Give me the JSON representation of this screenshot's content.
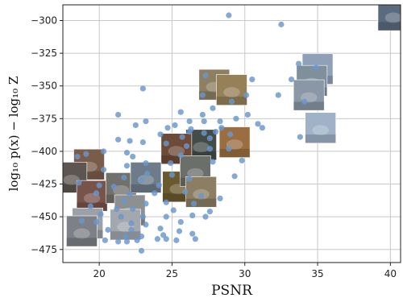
{
  "chart_data": {
    "type": "scatter",
    "xlabel": "PSNR",
    "ylabel": "log₁₀ p(x) − log₁₀ Z",
    "xlim": [
      17.5,
      40.7
    ],
    "ylim": [
      -485,
      -288
    ],
    "xticks": [
      20,
      25,
      30,
      35,
      40
    ],
    "yticks": [
      -300,
      -325,
      -350,
      -375,
      -400,
      -425,
      -450,
      -475
    ],
    "grid": true,
    "point_color": "#6a96cc",
    "points": [
      [
        28.9,
        -296
      ],
      [
        32.5,
        -303
      ],
      [
        33.7,
        -333
      ],
      [
        34.9,
        -336
      ],
      [
        27.3,
        -342
      ],
      [
        33.2,
        -345
      ],
      [
        30.5,
        -345
      ],
      [
        30.1,
        -357
      ],
      [
        32.3,
        -357
      ],
      [
        27.1,
        -357
      ],
      [
        23.0,
        -352
      ],
      [
        29.1,
        -362
      ],
      [
        34.1,
        -362
      ],
      [
        27.8,
        -367
      ],
      [
        27.1,
        -372
      ],
      [
        21.3,
        -372
      ],
      [
        23.2,
        -377
      ],
      [
        30.2,
        -372
      ],
      [
        25.6,
        -370
      ],
      [
        29.4,
        -375
      ],
      [
        26.2,
        -377
      ],
      [
        27.2,
        -377
      ],
      [
        28.3,
        -377
      ],
      [
        22.5,
        -380
      ],
      [
        26.3,
        -383
      ],
      [
        30.9,
        -379
      ],
      [
        24.7,
        -382
      ],
      [
        25.2,
        -380
      ],
      [
        31.2,
        -382
      ],
      [
        28.4,
        -382
      ],
      [
        24.2,
        -387
      ],
      [
        26.2,
        -385
      ],
      [
        27.2,
        -386
      ],
      [
        28.0,
        -385
      ],
      [
        29.0,
        -387
      ],
      [
        25.7,
        -389
      ],
      [
        27.6,
        -390
      ],
      [
        33.8,
        -389
      ],
      [
        21.3,
        -391
      ],
      [
        22.1,
        -392
      ],
      [
        23.0,
        -393
      ],
      [
        24.6,
        -394
      ],
      [
        26.0,
        -396
      ],
      [
        27.6,
        -398
      ],
      [
        28.9,
        -398
      ],
      [
        21.9,
        -401
      ],
      [
        20.3,
        -400
      ],
      [
        19.1,
        -402
      ],
      [
        18.5,
        -404
      ],
      [
        22.3,
        -404
      ],
      [
        25.6,
        -403
      ],
      [
        23.2,
        -409
      ],
      [
        24.9,
        -409
      ],
      [
        27.8,
        -408
      ],
      [
        29.8,
        -407
      ],
      [
        21.9,
        -411
      ],
      [
        20.3,
        -414
      ],
      [
        23.3,
        -417
      ],
      [
        25.0,
        -418
      ],
      [
        21.7,
        -420
      ],
      [
        22.9,
        -422
      ],
      [
        26.2,
        -421
      ],
      [
        29.3,
        -419
      ],
      [
        18.6,
        -424
      ],
      [
        20.0,
        -426
      ],
      [
        21.0,
        -427
      ],
      [
        24.1,
        -426
      ],
      [
        19.8,
        -432
      ],
      [
        22.1,
        -433
      ],
      [
        23.8,
        -432
      ],
      [
        25.9,
        -431
      ],
      [
        27.0,
        -434
      ],
      [
        21.7,
        -438
      ],
      [
        23.2,
        -440
      ],
      [
        24.6,
        -439
      ],
      [
        26.5,
        -440
      ],
      [
        28.3,
        -436
      ],
      [
        19.4,
        -442
      ],
      [
        21.2,
        -444
      ],
      [
        22.3,
        -444
      ],
      [
        25.1,
        -445
      ],
      [
        27.6,
        -446
      ],
      [
        20.1,
        -448
      ],
      [
        21.5,
        -450
      ],
      [
        23.0,
        -450
      ],
      [
        24.6,
        -450
      ],
      [
        26.4,
        -449
      ],
      [
        27.3,
        -450
      ],
      [
        18.8,
        -453
      ],
      [
        19.8,
        -454
      ],
      [
        22.2,
        -455
      ],
      [
        23.2,
        -456
      ],
      [
        25.6,
        -454
      ],
      [
        20.6,
        -460
      ],
      [
        22.2,
        -460
      ],
      [
        24.2,
        -459
      ],
      [
        25.5,
        -461
      ],
      [
        21.8,
        -465
      ],
      [
        22.9,
        -465
      ],
      [
        24.4,
        -464
      ],
      [
        26.4,
        -463
      ],
      [
        20.4,
        -468
      ],
      [
        21.3,
        -469
      ],
      [
        21.9,
        -469
      ],
      [
        22.6,
        -468
      ],
      [
        24.0,
        -467
      ],
      [
        24.6,
        -467
      ],
      [
        25.3,
        -468
      ],
      [
        26.6,
        -467
      ],
      [
        22.9,
        -476
      ]
    ],
    "thumbnails": [
      {
        "x": 40.2,
        "y": -296,
        "tone": "#5b6b7e"
      },
      {
        "x": 35.0,
        "y": -337,
        "tone": "#8fa1b8"
      },
      {
        "x": 34.6,
        "y": -346,
        "tone": "#7f8f9c"
      },
      {
        "x": 34.4,
        "y": -357,
        "tone": "#8997a6"
      },
      {
        "x": 35.2,
        "y": -382,
        "tone": "#9fb2c8"
      },
      {
        "x": 27.9,
        "y": -349,
        "tone": "#8e7f63"
      },
      {
        "x": 29.1,
        "y": -353,
        "tone": "#958058"
      },
      {
        "x": 29.3,
        "y": -393,
        "tone": "#9a6e40"
      },
      {
        "x": 27.0,
        "y": -395,
        "tone": "#444c48"
      },
      {
        "x": 25.3,
        "y": -398,
        "tone": "#6e4a38"
      },
      {
        "x": 19.3,
        "y": -410,
        "tone": "#7a5c49"
      },
      {
        "x": 18.1,
        "y": -420,
        "tone": "#5d5650"
      },
      {
        "x": 19.5,
        "y": -434,
        "tone": "#775349"
      },
      {
        "x": 21.5,
        "y": -428,
        "tone": "#72706b"
      },
      {
        "x": 22.1,
        "y": -445,
        "tone": "#8e8f90"
      },
      {
        "x": 23.2,
        "y": -420,
        "tone": "#6e7c89"
      },
      {
        "x": 25.4,
        "y": -427,
        "tone": "#6a5a2e"
      },
      {
        "x": 26.6,
        "y": -415,
        "tone": "#6b6f6a"
      },
      {
        "x": 27.0,
        "y": -431,
        "tone": "#8b7e63"
      },
      {
        "x": 19.2,
        "y": -455,
        "tone": "#9ba1a7"
      },
      {
        "x": 18.8,
        "y": -461,
        "tone": "#7d8187"
      },
      {
        "x": 21.8,
        "y": -456,
        "tone": "#a3a7ae"
      }
    ]
  }
}
